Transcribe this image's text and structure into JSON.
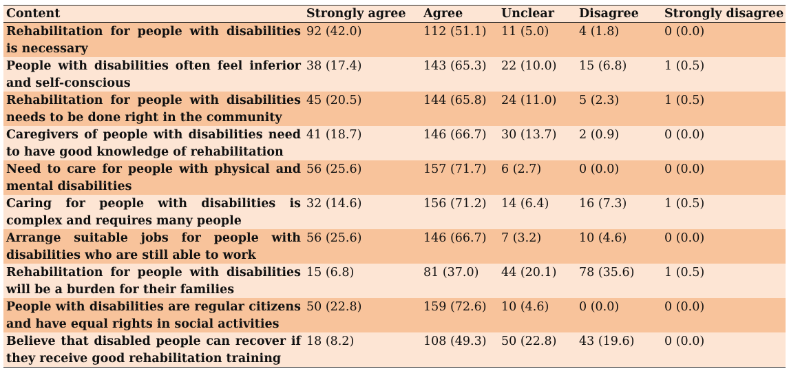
{
  "table": {
    "headers": [
      "Content",
      "Strongly agree",
      "Agree",
      "Unclear",
      "Disagree",
      "Strongly disagree"
    ],
    "rows": [
      [
        "Rehabilitation for people with disabilities is necessary",
        "92 (42.0)",
        "112 (51.1)",
        "11 (5.0)",
        "4 (1.8)",
        "0 (0.0)"
      ],
      [
        "People with disabilities often feel inferior and self-conscious",
        "38 (17.4)",
        "143 (65.3)",
        "22 (10.0)",
        "15 (6.8)",
        "1 (0.5)"
      ],
      [
        "Rehabilitation for people with disabilities needs to be done right in the community",
        "45 (20.5)",
        "144 (65.8)",
        "24 (11.0)",
        "5 (2.3)",
        "1 (0.5)"
      ],
      [
        "Caregivers of people with disabilities need to have good knowledge of rehabilitation",
        "41 (18.7)",
        "146 (66.7)",
        "30 (13.7)",
        "2 (0.9)",
        "0 (0.0)"
      ],
      [
        "Need to care for people with physical and mental disabilities",
        "56 (25.6)",
        "157 (71.7)",
        "6 (2.7)",
        "0 (0.0)",
        "0 (0.0)"
      ],
      [
        "Caring for people with disabilities is complex and requires many people",
        "32 (14.6)",
        "156 (71.2)",
        "14 (6.4)",
        "16 (7.3)",
        "1 (0.5)"
      ],
      [
        "Arrange suitable jobs for people with disabilities who are still able to work",
        "56 (25.6)",
        "146 (66.7)",
        "7 (3.2)",
        "10 (4.6)",
        "0 (0.0)"
      ],
      [
        "Rehabilitation for people with disabilities will be a burden for their families",
        "15 (6.8)",
        "81 (37.0)",
        "44 (20.1)",
        "78 (35.6)",
        "1 (0.5)"
      ],
      [
        "People with disabilities are regular citizens and have equal rights in social activities",
        "50 (22.8)",
        "159 (72.6)",
        "10 (4.6)",
        "0 (0.0)",
        "0 (0.0)"
      ],
      [
        "Believe that disabled people can recover if they receive good rehabilitation training",
        "18 (8.2)",
        "108 (49.3)",
        "50 (22.8)",
        "43 (19.6)",
        "0 (0.0)"
      ]
    ]
  },
  "colors": {
    "band_dark": "#f8c39b",
    "band_light": "#fde5d4"
  }
}
